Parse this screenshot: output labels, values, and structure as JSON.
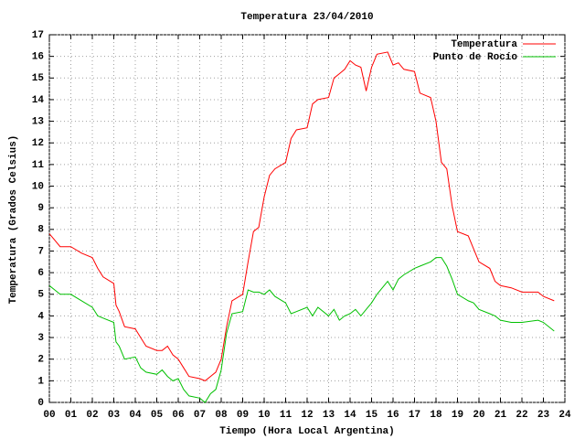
{
  "chart_data": {
    "type": "line",
    "title": "Temperatura 23/04/2010",
    "x_label": "Tiempo (Hora Local Argentina)",
    "y_label": "Temperatura (Grados Celsius)",
    "x": [
      0,
      0.25,
      0.5,
      1,
      1.5,
      2,
      2.25,
      2.5,
      3,
      3.1,
      3.25,
      3.5,
      4,
      4.25,
      4.5,
      5,
      5.25,
      5.5,
      5.75,
      6,
      6.25,
      6.5,
      7,
      7.25,
      7.5,
      7.75,
      8,
      8.25,
      8.5,
      9,
      9.25,
      9.5,
      9.75,
      10,
      10.25,
      10.5,
      11,
      11.25,
      11.5,
      12,
      12.25,
      12.5,
      13,
      13.25,
      13.5,
      13.75,
      14,
      14.25,
      14.5,
      14.75,
      15,
      15.25,
      15.75,
      16,
      16.25,
      16.5,
      17,
      17.25,
      17.75,
      18,
      18.25,
      18.5,
      18.75,
      19,
      19.5,
      19.75,
      20,
      20.5,
      20.75,
      21,
      21.5,
      22,
      22.75,
      23,
      23.5
    ],
    "series": [
      {
        "name": "Temperatura",
        "color": "#ff0000",
        "values": [
          7.8,
          7.5,
          7.2,
          7.2,
          6.9,
          6.7,
          6.2,
          5.8,
          5.5,
          4.5,
          4.2,
          3.5,
          3.4,
          3.0,
          2.6,
          2.4,
          2.4,
          2.6,
          2.2,
          2.0,
          1.6,
          1.2,
          1.1,
          1.0,
          1.2,
          1.4,
          2.0,
          3.5,
          4.7,
          5.0,
          6.5,
          7.9,
          8.1,
          9.5,
          10.5,
          10.8,
          11.1,
          12.2,
          12.6,
          12.7,
          13.8,
          14.0,
          14.1,
          15.0,
          15.2,
          15.4,
          15.8,
          15.6,
          15.5,
          14.4,
          15.5,
          16.1,
          16.2,
          15.6,
          15.7,
          15.4,
          15.3,
          14.3,
          14.1,
          13.0,
          11.1,
          10.8,
          9.1,
          7.9,
          7.7,
          7.1,
          6.5,
          6.2,
          5.6,
          5.4,
          5.3,
          5.1,
          5.1,
          4.9,
          4.7
        ]
      },
      {
        "name": "Punto de Rocío",
        "color": "#00c000",
        "values": [
          5.4,
          5.2,
          5.0,
          5.0,
          4.7,
          4.4,
          4.0,
          3.9,
          3.7,
          2.8,
          2.6,
          2.0,
          2.1,
          1.6,
          1.4,
          1.3,
          1.5,
          1.2,
          1.0,
          1.1,
          0.6,
          0.3,
          0.2,
          0.0,
          0.4,
          0.6,
          1.5,
          3.2,
          4.1,
          4.2,
          5.2,
          5.1,
          5.1,
          5.0,
          5.2,
          4.9,
          4.6,
          4.1,
          4.2,
          4.4,
          4.0,
          4.4,
          4.0,
          4.3,
          3.8,
          4.0,
          4.1,
          4.3,
          4.0,
          4.3,
          4.6,
          5.0,
          5.6,
          5.2,
          5.7,
          5.9,
          6.2,
          6.3,
          6.5,
          6.7,
          6.7,
          6.3,
          5.7,
          5.0,
          4.7,
          4.6,
          4.3,
          4.1,
          4.0,
          3.8,
          3.7,
          3.7,
          3.8,
          3.7,
          3.3
        ]
      }
    ],
    "xlim": [
      0,
      24
    ],
    "xticks": [
      {
        "value": 0,
        "label": "00"
      },
      {
        "value": 1,
        "label": "01"
      },
      {
        "value": 2,
        "label": "02"
      },
      {
        "value": 3,
        "label": "03"
      },
      {
        "value": 4,
        "label": "04"
      },
      {
        "value": 5,
        "label": "05"
      },
      {
        "value": 6,
        "label": "06"
      },
      {
        "value": 7,
        "label": "07"
      },
      {
        "value": 8,
        "label": "08"
      },
      {
        "value": 9,
        "label": "09"
      },
      10,
      11,
      12,
      13,
      14,
      15,
      16,
      17,
      18,
      19,
      20,
      21,
      22,
      23,
      24
    ],
    "ylim": [
      0,
      17
    ],
    "yticks": [
      0,
      1,
      2,
      3,
      4,
      5,
      6,
      7,
      8,
      9,
      10,
      11,
      12,
      13,
      14,
      15,
      16,
      17
    ],
    "grid": true,
    "legend": "top-right"
  }
}
